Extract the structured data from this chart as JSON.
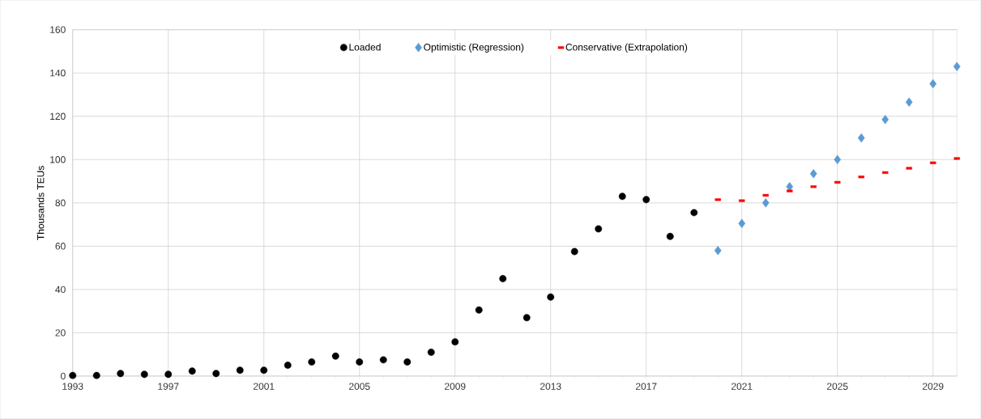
{
  "chart_data": {
    "type": "scatter",
    "ylabel": "Thousands TEUs",
    "xlim": [
      1993,
      2030
    ],
    "xticks": [
      1993,
      1997,
      2001,
      2005,
      2009,
      2013,
      2017,
      2021,
      2025,
      2029
    ],
    "ylim": [
      0,
      160
    ],
    "yticks": [
      0,
      20,
      40,
      60,
      80,
      100,
      120,
      140,
      160
    ],
    "grid": true,
    "legend": "top",
    "series": [
      {
        "name": "Loaded",
        "color": "#000000",
        "marker": "circle",
        "x": [
          1993,
          1994,
          1995,
          1996,
          1997,
          1998,
          1999,
          2000,
          2001,
          2002,
          2003,
          2004,
          2005,
          2006,
          2007,
          2008,
          2009,
          2010,
          2011,
          2012,
          2013,
          2014,
          2015,
          2016,
          2017,
          2018,
          2019
        ],
        "values": [
          0.3,
          0.3,
          1.2,
          0.8,
          0.8,
          2.3,
          1.2,
          2.7,
          2.7,
          5,
          6.5,
          9.2,
          6.5,
          7.5,
          6.5,
          11,
          15.8,
          30.5,
          45,
          27,
          36.5,
          57.5,
          68,
          83,
          81.5,
          64.5,
          75.5
        ]
      },
      {
        "name": "Optimistic (Regression)",
        "color": "#5b9bd5",
        "marker": "diamond",
        "x": [
          2020,
          2021,
          2022,
          2023,
          2024,
          2025,
          2026,
          2027,
          2028,
          2029,
          2030
        ],
        "values": [
          58,
          70.5,
          80,
          87.5,
          93.5,
          100,
          110,
          118.5,
          126.5,
          135,
          143
        ]
      },
      {
        "name": "Conservative (Extrapolation)",
        "color": "#ff0000",
        "marker": "square",
        "x": [
          2020,
          2021,
          2022,
          2023,
          2024,
          2025,
          2026,
          2027,
          2028,
          2029,
          2030
        ],
        "values": [
          81.5,
          81,
          83.5,
          85.5,
          87.5,
          89.5,
          92,
          94,
          96,
          98.5,
          100.5
        ]
      }
    ]
  }
}
